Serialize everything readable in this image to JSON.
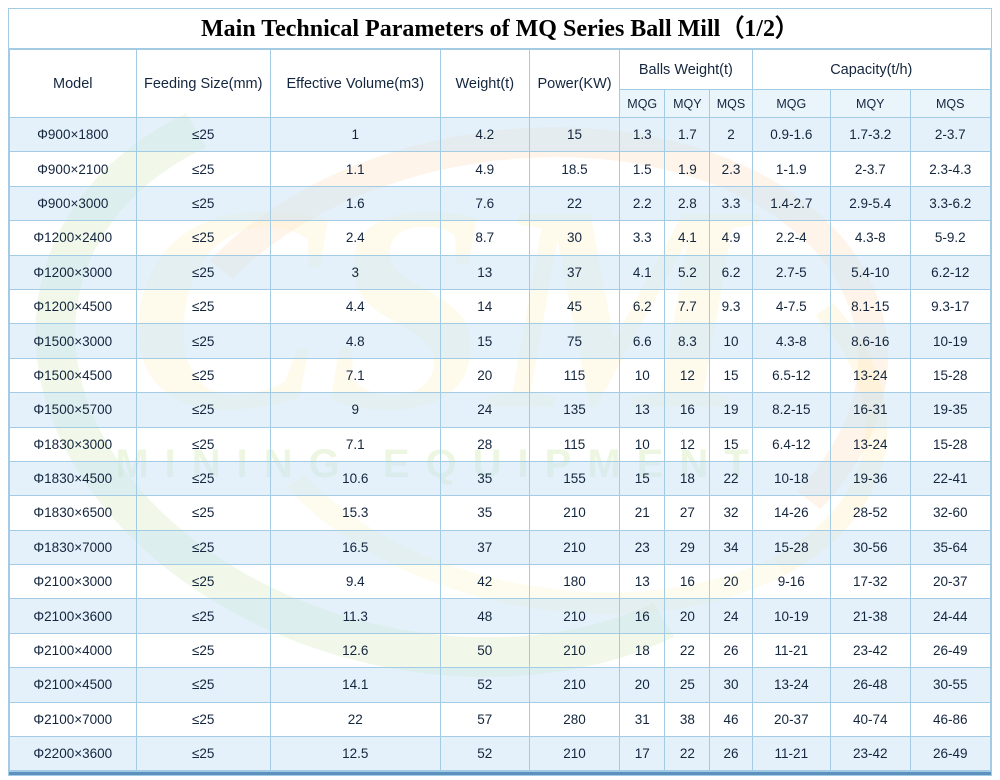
{
  "title": "Main Technical Parameters of MQ Series Ball Mill（1/2）",
  "table": {
    "headers": {
      "model": "Model",
      "feeding_size": "Feeding Size(mm)",
      "effective_volume": "Effective Volume(m3)",
      "weight": "Weight(t)",
      "power": "Power(KW)",
      "balls_weight": "Balls Weight(t)",
      "capacity": "Capacity(t/h)",
      "sub": [
        "MQG",
        "MQY",
        "MQS"
      ]
    },
    "rows": [
      [
        "Φ900×1800",
        "≤25",
        "1",
        "4.2",
        "15",
        "1.3",
        "1.7",
        "2",
        "0.9-1.6",
        "1.7-3.2",
        "2-3.7"
      ],
      [
        "Φ900×2100",
        "≤25",
        "1.1",
        "4.9",
        "18.5",
        "1.5",
        "1.9",
        "2.3",
        "1-1.9",
        "2-3.7",
        "2.3-4.3"
      ],
      [
        "Φ900×3000",
        "≤25",
        "1.6",
        "7.6",
        "22",
        "2.2",
        "2.8",
        "3.3",
        "1.4-2.7",
        "2.9-5.4",
        "3.3-6.2"
      ],
      [
        "Φ1200×2400",
        "≤25",
        "2.4",
        "8.7",
        "30",
        "3.3",
        "4.1",
        "4.9",
        "2.2-4",
        "4.3-8",
        "5-9.2"
      ],
      [
        "Φ1200×3000",
        "≤25",
        "3",
        "13",
        "37",
        "4.1",
        "5.2",
        "6.2",
        "2.7-5",
        "5.4-10",
        "6.2-12"
      ],
      [
        "Φ1200×4500",
        "≤25",
        "4.4",
        "14",
        "45",
        "6.2",
        "7.7",
        "9.3",
        "4-7.5",
        "8.1-15",
        "9.3-17"
      ],
      [
        "Φ1500×3000",
        "≤25",
        "4.8",
        "15",
        "75",
        "6.6",
        "8.3",
        "10",
        "4.3-8",
        "8.6-16",
        "10-19"
      ],
      [
        "Φ1500×4500",
        "≤25",
        "7.1",
        "20",
        "115",
        "10",
        "12",
        "15",
        "6.5-12",
        "13-24",
        "15-28"
      ],
      [
        "Φ1500×5700",
        "≤25",
        "9",
        "24",
        "135",
        "13",
        "16",
        "19",
        "8.2-15",
        "16-31",
        "19-35"
      ],
      [
        "Φ1830×3000",
        "≤25",
        "7.1",
        "28",
        "115",
        "10",
        "12",
        "15",
        "6.4-12",
        "13-24",
        "15-28"
      ],
      [
        "Φ1830×4500",
        "≤25",
        "10.6",
        "35",
        "155",
        "15",
        "18",
        "22",
        "10-18",
        "19-36",
        "22-41"
      ],
      [
        "Φ1830×6500",
        "≤25",
        "15.3",
        "35",
        "210",
        "21",
        "27",
        "32",
        "14-26",
        "28-52",
        "32-60"
      ],
      [
        "Φ1830×7000",
        "≤25",
        "16.5",
        "37",
        "210",
        "23",
        "29",
        "34",
        "15-28",
        "30-56",
        "35-64"
      ],
      [
        "Φ2100×3000",
        "≤25",
        "9.4",
        "42",
        "180",
        "13",
        "16",
        "20",
        "9-16",
        "17-32",
        "20-37"
      ],
      [
        "Φ2100×3600",
        "≤25",
        "11.3",
        "48",
        "210",
        "16",
        "20",
        "24",
        "10-19",
        "21-38",
        "24-44"
      ],
      [
        "Φ2100×4000",
        "≤25",
        "12.6",
        "50",
        "210",
        "18",
        "22",
        "26",
        "11-21",
        "23-42",
        "26-49"
      ],
      [
        "Φ2100×4500",
        "≤25",
        "14.1",
        "52",
        "210",
        "20",
        "25",
        "30",
        "13-24",
        "26-48",
        "30-55"
      ],
      [
        "Φ2100×7000",
        "≤25",
        "22",
        "57",
        "280",
        "31",
        "38",
        "46",
        "20-37",
        "40-74",
        "46-86"
      ],
      [
        "Φ2200×3600",
        "≤25",
        "12.5",
        "52",
        "210",
        "17",
        "22",
        "26",
        "11-21",
        "23-42",
        "26-49"
      ]
    ]
  },
  "watermark": {
    "brand": "CSM",
    "subtitle": "MINING EQUIPMENT"
  },
  "colors": {
    "border": "#a3cbe3",
    "stripe": "#d9ecf8",
    "text": "#14263e",
    "watermark_green": "#92c750",
    "watermark_orange": "#f6963c",
    "watermark_yellow": "#fcd550",
    "partial_row": "#5d92c0"
  }
}
